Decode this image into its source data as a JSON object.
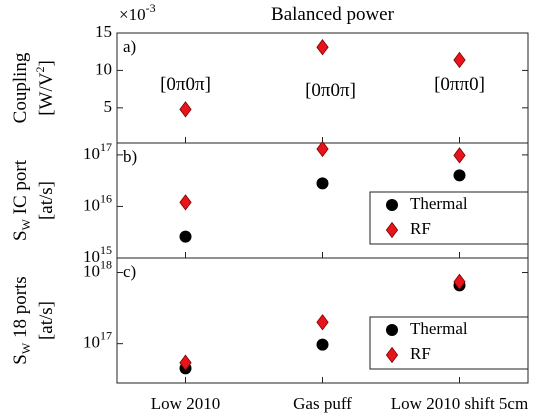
{
  "chart_data": [
    {
      "type": "scatter",
      "title": "Balanced power",
      "multiplier": "×10^{-3}",
      "panel_label": "a)",
      "y_label": [
        "Coupling",
        "[W/V^{2}]"
      ],
      "categories": [
        null,
        null,
        null
      ],
      "series": [
        {
          "color": "#e8141b",
          "marker": "diamond",
          "values": [
            4.8,
            13.1,
            11.4
          ]
        }
      ],
      "annotations": [
        "[0π0π]",
        "[0π0π]",
        "[0ππ0]"
      ],
      "ylim": [
        0.3,
        15
      ],
      "yticks": [
        5,
        10,
        15
      ]
    },
    {
      "type": "scatter",
      "panel_label": "b)",
      "log": true,
      "y_label": [
        "S_{W} IC port",
        "[at/s]"
      ],
      "categories": [
        null,
        null,
        null
      ],
      "series": [
        {
          "name": "Thermal",
          "color": "#000000",
          "marker": "circle",
          "values": [
            2600000000000000.0,
            2.8e+16,
            4e+16
          ]
        },
        {
          "name": "RF",
          "color": "#e8141b",
          "marker": "diamond",
          "values": [
            1.2e+16,
            1.3e+17,
            9.8e+16
          ]
        }
      ],
      "legend": "lower right",
      "ylim": [
        1000000000000000.0,
        1.7e+17
      ],
      "yticks": [
        {
          "value": 1000000000000000.0,
          "label": "10^{15}"
        },
        {
          "value": 1e+16,
          "label": "10^{16}"
        },
        {
          "value": 1e+17,
          "label": "10^{17}"
        }
      ]
    },
    {
      "type": "scatter",
      "panel_label": "c)",
      "log": true,
      "y_label": [
        "S_{W} 18 ports",
        "[at/s]"
      ],
      "categories": [
        "Low 2010",
        "Gas puff",
        "Low 2010 shift 5cm"
      ],
      "series": [
        {
          "name": "Thermal",
          "color": "#000000",
          "marker": "circle",
          "values": [
            4.5e+16,
            9.7e+16,
            6.6e+17
          ]
        },
        {
          "name": "RF",
          "color": "#e8141b",
          "marker": "diamond",
          "values": [
            5.4e+16,
            2e+17,
            7.4e+17
          ]
        }
      ],
      "legend": "lower right",
      "ylim": [
        2.8e+16,
        1.6e+18
      ],
      "yticks": [
        {
          "value": 1e+17,
          "label": "10^{17}"
        },
        {
          "value": 1e+18,
          "label": "10^{18}"
        }
      ]
    }
  ]
}
